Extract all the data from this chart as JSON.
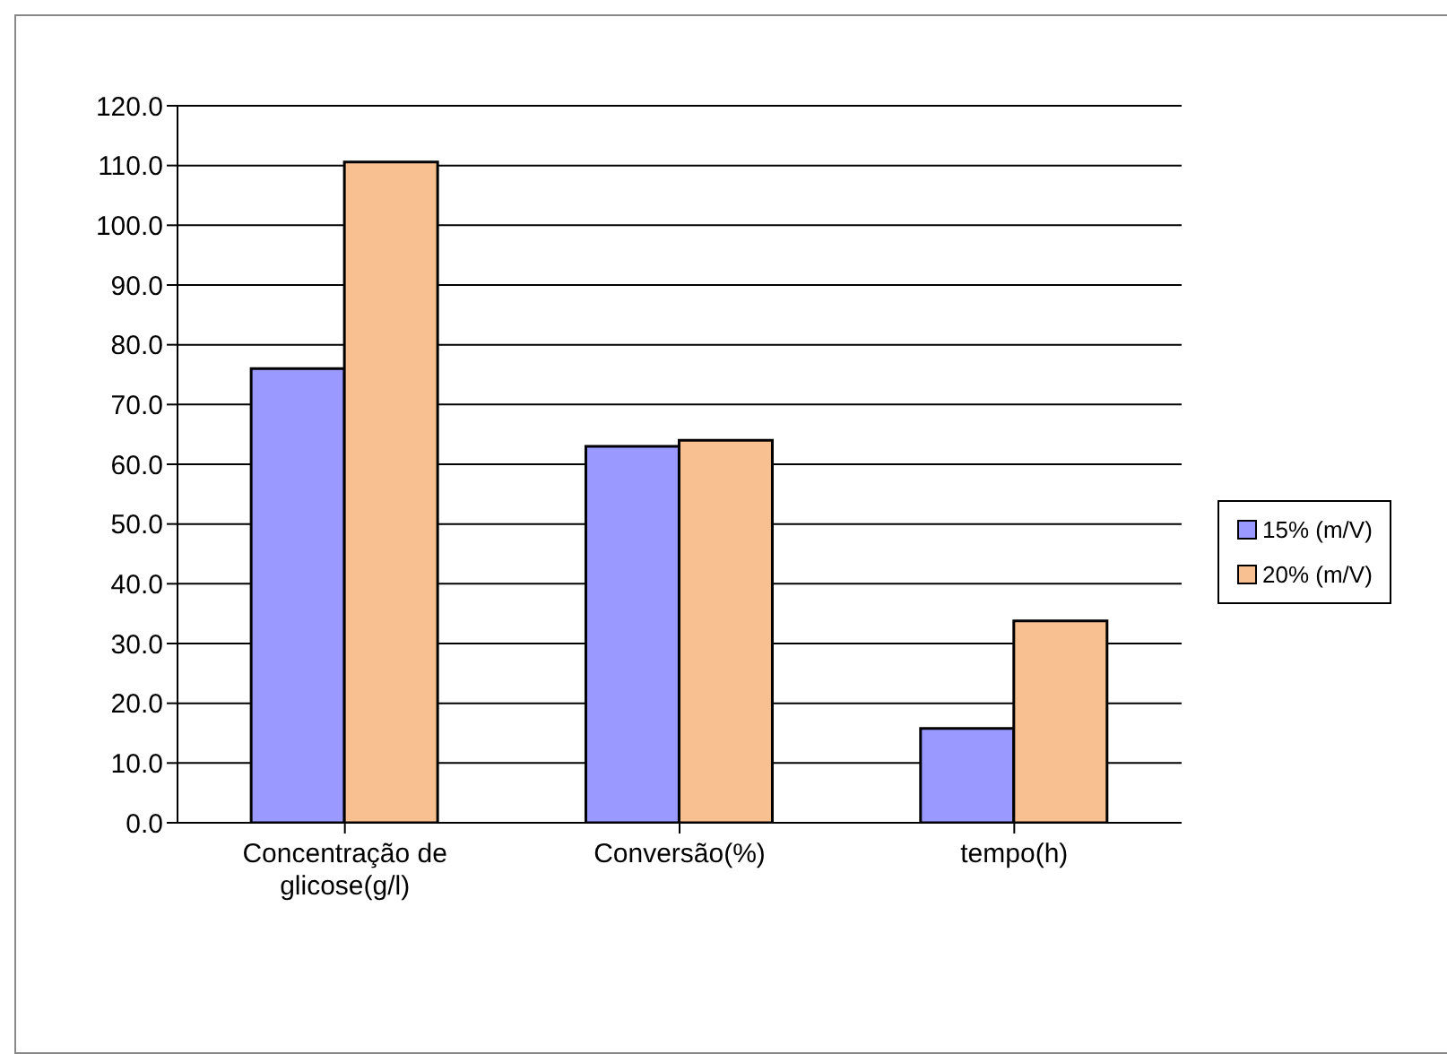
{
  "chart_data": {
    "type": "bar",
    "categories": [
      "Concentração de glicose(g/l)",
      "Conversão(%)",
      "tempo(h)"
    ],
    "series": [
      {
        "name": "15% (m/V)",
        "color": "#9999ff",
        "values": [
          76.0,
          63.0,
          15.8
        ]
      },
      {
        "name": "20% (m/V)",
        "color": "#f8c090",
        "values": [
          110.6,
          64.0,
          33.8
        ]
      }
    ],
    "ylim": [
      0,
      120
    ],
    "yticks": [
      {
        "value": 0,
        "label": "0.0"
      },
      {
        "value": 10,
        "label": "10.0"
      },
      {
        "value": 20,
        "label": "20.0"
      },
      {
        "value": 30,
        "label": "30.0"
      },
      {
        "value": 40,
        "label": "40.0"
      },
      {
        "value": 50,
        "label": "50.0"
      },
      {
        "value": 60,
        "label": "60.0"
      },
      {
        "value": 70,
        "label": "70.0"
      },
      {
        "value": 80,
        "label": "80.0"
      },
      {
        "value": 90,
        "label": "90.0"
      },
      {
        "value": 100,
        "label": "100.0"
      },
      {
        "value": 110,
        "label": "110.0"
      },
      {
        "value": 120,
        "label": "120.0"
      }
    ],
    "grid": "y",
    "legend": "right"
  }
}
